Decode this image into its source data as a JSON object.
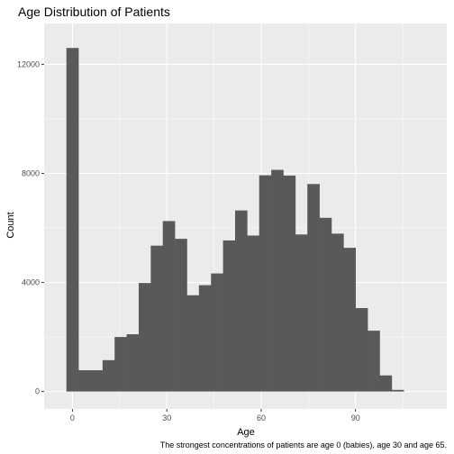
{
  "chart_data": {
    "type": "bar",
    "title": "Age Distribution of Patients",
    "xlabel": "Age",
    "ylabel": "Count",
    "caption": "The strongest concentrations of patients are age 0 (babies), age 30 and age 65.",
    "xlim": [
      -9,
      119
    ],
    "ylim": [
      -640,
      13500
    ],
    "x_ticks": [
      0,
      30,
      60,
      90
    ],
    "x_tick_labels": [
      "0",
      "30",
      "60",
      "90"
    ],
    "y_ticks": [
      0,
      4000,
      8000,
      12000
    ],
    "y_tick_labels": [
      "0",
      "4000",
      "8000",
      "12000"
    ],
    "bin_width": 3.83,
    "bin_start": -1.92,
    "values": [
      12600,
      780,
      780,
      1150,
      2000,
      2100,
      3980,
      5350,
      6250,
      5600,
      3530,
      3900,
      4330,
      5540,
      6640,
      5720,
      7930,
      8130,
      7920,
      5760,
      7610,
      6370,
      5790,
      5270,
      3060,
      2230,
      590,
      60
    ],
    "grid": true,
    "colors": {
      "bar": "#595959",
      "panel": "#ebebeb",
      "gridline": "#ffffff"
    }
  }
}
